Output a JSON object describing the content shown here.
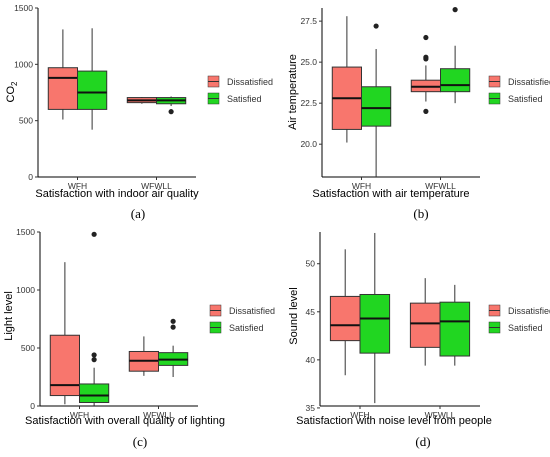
{
  "legend": {
    "items": [
      {
        "label": "Dissatisfied",
        "color": "#f8766d"
      },
      {
        "label": "Satisfied",
        "color": "#21d621"
      }
    ]
  },
  "chart_data": [
    {
      "type": "box",
      "caption": "(a)",
      "title": "",
      "xlabel": "Satisfaction with indoor air quality",
      "ylabel": "CO2",
      "ylabel_base": "CO",
      "ylabel_sub": "2",
      "categories": [
        "WFH",
        "WFWLL"
      ],
      "ylim": [
        0,
        1500
      ],
      "yticks": [
        0,
        500,
        1000,
        1500
      ],
      "ytick_labels": [
        "0",
        "500",
        "1000",
        "1500"
      ],
      "legend_placement": "right",
      "grid": false,
      "series": [
        {
          "name": "Dissatisfied",
          "boxes": [
            {
              "min": 510,
              "q1": 600,
              "median": 880,
              "q3": 970,
              "max": 1310,
              "outliers": []
            },
            {
              "min": 650,
              "q1": 660,
              "median": 680,
              "q3": 705,
              "max": 710,
              "outliers": []
            }
          ]
        },
        {
          "name": "Satisfied",
          "boxes": [
            {
              "min": 420,
              "q1": 600,
              "median": 750,
              "q3": 940,
              "max": 1320,
              "outliers": []
            },
            {
              "min": 630,
              "q1": 650,
              "median": 680,
              "q3": 705,
              "max": 715,
              "outliers": [
                580
              ]
            }
          ]
        }
      ]
    },
    {
      "type": "box",
      "caption": "(b)",
      "title": "",
      "xlabel": "Satisfaction with air temperature",
      "ylabel": "Air temperature",
      "categories": [
        "WFH",
        "WFWLL"
      ],
      "ylim": [
        18.0,
        28.3
      ],
      "yticks": [
        20.0,
        22.5,
        25.0,
        27.5
      ],
      "ytick_labels": [
        "20.0",
        "22.5",
        "25.0",
        "27.5"
      ],
      "legend_placement": "right",
      "grid": false,
      "series": [
        {
          "name": "Dissatisfied",
          "boxes": [
            {
              "min": 20.1,
              "q1": 20.9,
              "median": 22.8,
              "q3": 24.7,
              "max": 27.8,
              "outliers": []
            },
            {
              "min": 22.6,
              "q1": 23.2,
              "median": 23.5,
              "q3": 23.9,
              "max": 24.8,
              "outliers": [
                22.0,
                25.2,
                25.3,
                26.5
              ]
            }
          ]
        },
        {
          "name": "Satisfied",
          "boxes": [
            {
              "min": 18.0,
              "q1": 21.1,
              "median": 22.2,
              "q3": 23.5,
              "max": 25.8,
              "outliers": [
                27.2
              ]
            },
            {
              "min": 22.5,
              "q1": 23.2,
              "median": 23.6,
              "q3": 24.6,
              "max": 26.0,
              "outliers": [
                28.2
              ]
            }
          ]
        }
      ]
    },
    {
      "type": "box",
      "caption": "(c)",
      "title": "",
      "xlabel": "Satisfaction with overall quality of lighting",
      "ylabel": "Light level",
      "categories": [
        "WFH",
        "WFWLL"
      ],
      "ylim": [
        0,
        1500
      ],
      "yticks": [
        0,
        500,
        1000,
        1500
      ],
      "ytick_labels": [
        "0",
        "500",
        "1000",
        "1500"
      ],
      "legend_placement": "right",
      "grid": false,
      "series": [
        {
          "name": "Dissatisfied",
          "boxes": [
            {
              "min": 15,
              "q1": 90,
              "median": 180,
              "q3": 610,
              "max": 1240,
              "outliers": []
            },
            {
              "min": 260,
              "q1": 300,
              "median": 390,
              "q3": 470,
              "max": 600,
              "outliers": []
            }
          ]
        },
        {
          "name": "Satisfied",
          "boxes": [
            {
              "min": 5,
              "q1": 30,
              "median": 90,
              "q3": 190,
              "max": 330,
              "outliers": [
                400,
                440,
                1480
              ]
            },
            {
              "min": 250,
              "q1": 350,
              "median": 400,
              "q3": 460,
              "max": 520,
              "outliers": [
                680,
                730
              ]
            }
          ]
        }
      ]
    },
    {
      "type": "box",
      "caption": "(d)",
      "title": "",
      "xlabel": "Satisfaction with noise level from people",
      "ylabel": "Sound level",
      "categories": [
        "WFH",
        "WFWLL"
      ],
      "ylim": [
        35.2,
        53.3
      ],
      "yticks": [
        35,
        40,
        45,
        50
      ],
      "ytick_labels": [
        "35",
        "40",
        "45",
        "50"
      ],
      "legend_placement": "right",
      "grid": false,
      "series": [
        {
          "name": "Dissatisfied",
          "boxes": [
            {
              "min": 38.4,
              "q1": 42.0,
              "median": 43.6,
              "q3": 46.6,
              "max": 51.5,
              "outliers": []
            },
            {
              "min": 39.4,
              "q1": 41.3,
              "median": 43.8,
              "q3": 45.9,
              "max": 48.5,
              "outliers": []
            }
          ]
        },
        {
          "name": "Satisfied",
          "boxes": [
            {
              "min": 35.5,
              "q1": 40.7,
              "median": 44.3,
              "q3": 46.8,
              "max": 53.2,
              "outliers": []
            },
            {
              "min": 39.4,
              "q1": 40.4,
              "median": 44.0,
              "q3": 46.0,
              "max": 47.8,
              "outliers": []
            }
          ]
        }
      ]
    }
  ]
}
